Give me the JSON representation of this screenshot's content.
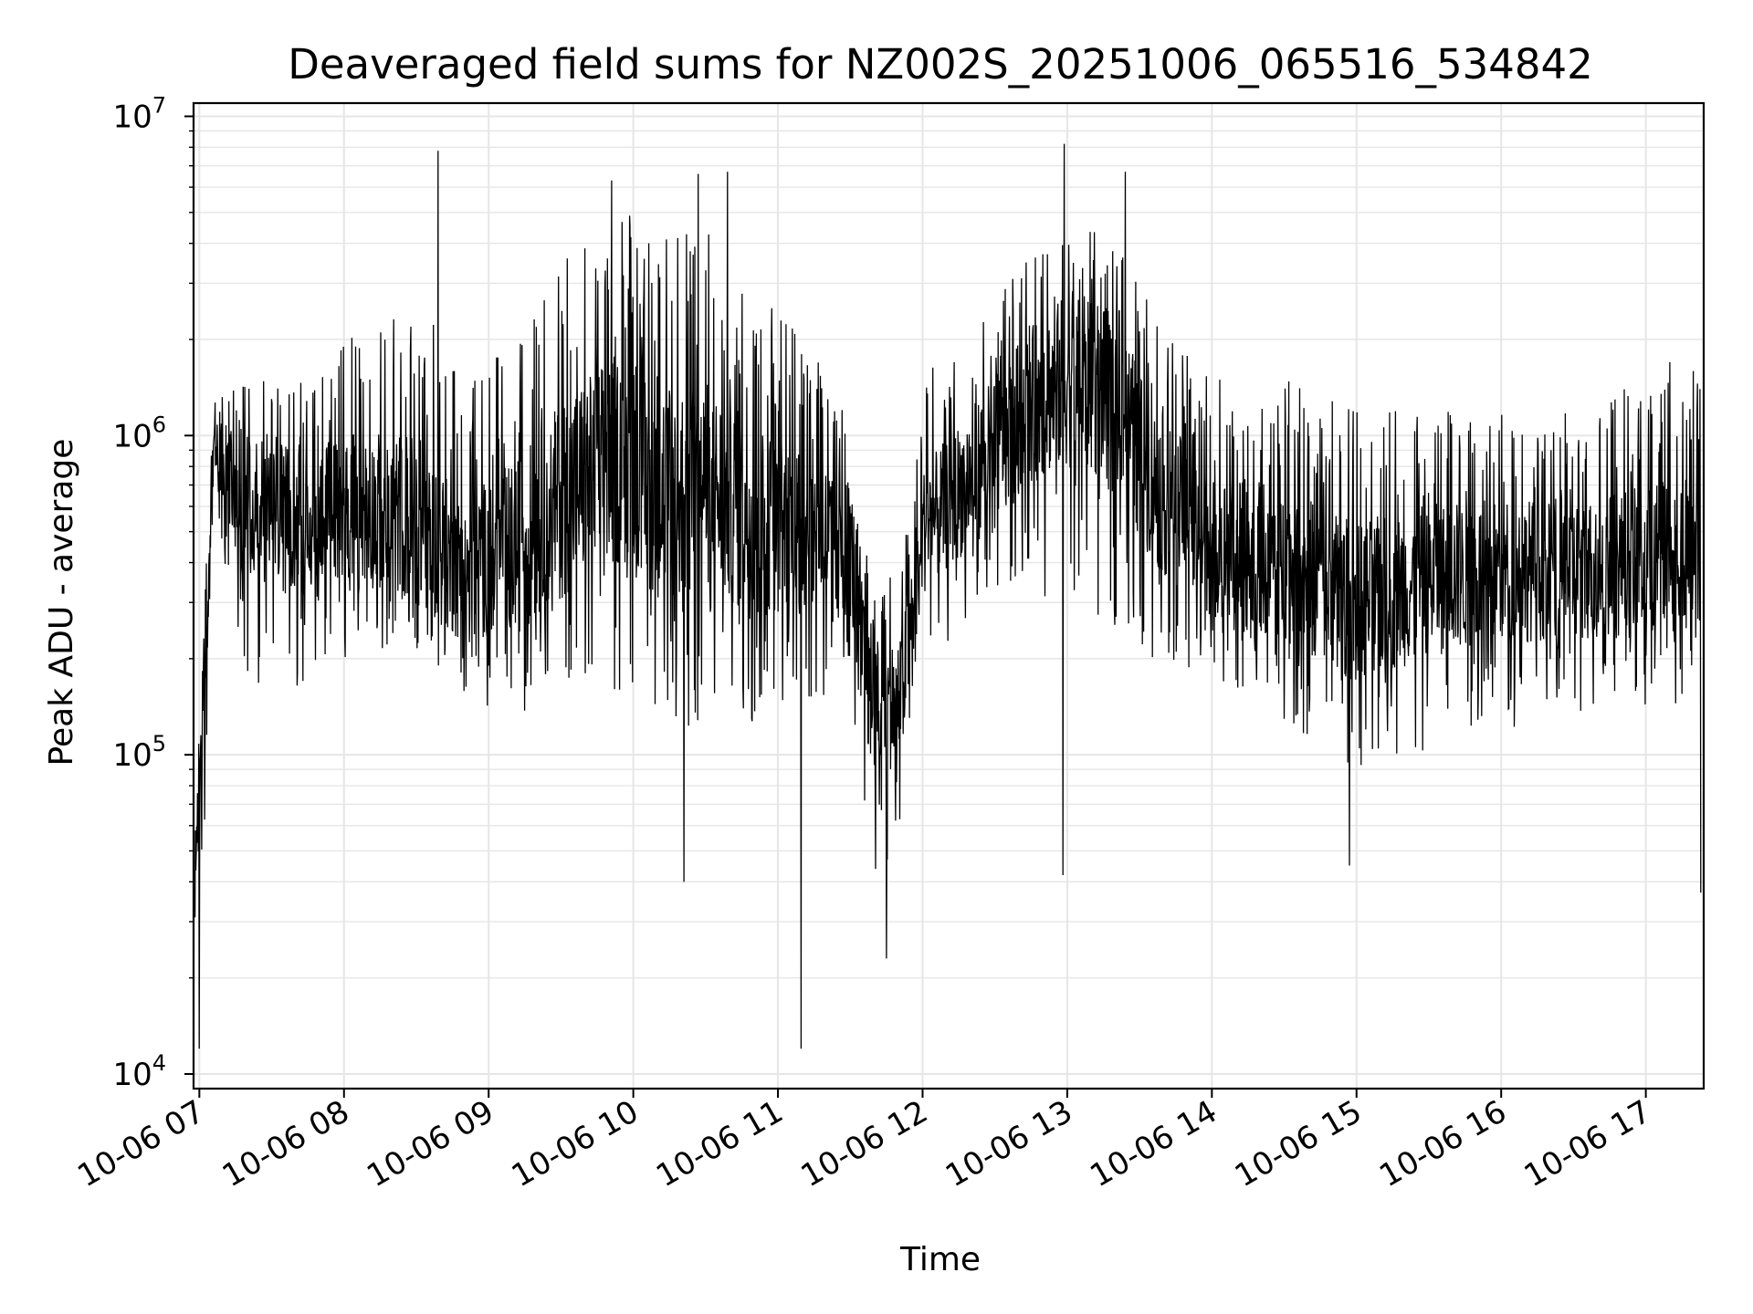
{
  "chart_data": {
    "type": "line",
    "title": "Deaveraged field sums for NZ002S_20251006_065516_534842",
    "xlabel": "Time",
    "ylabel": "Peak ADU - average",
    "yscale": "log",
    "ylim": [
      9000,
      11000000
    ],
    "xlim_hours": [
      6.96,
      17.4
    ],
    "x_ticks": [
      {
        "hour": 7,
        "label": "10-06 07"
      },
      {
        "hour": 8,
        "label": "10-06 08"
      },
      {
        "hour": 9,
        "label": "10-06 09"
      },
      {
        "hour": 10,
        "label": "10-06 10"
      },
      {
        "hour": 11,
        "label": "10-06 11"
      },
      {
        "hour": 12,
        "label": "10-06 12"
      },
      {
        "hour": 13,
        "label": "10-06 13"
      },
      {
        "hour": 14,
        "label": "10-06 14"
      },
      {
        "hour": 15,
        "label": "10-06 15"
      },
      {
        "hour": 16,
        "label": "10-06 16"
      },
      {
        "hour": 17,
        "label": "10-06 17"
      }
    ],
    "y_ticks": [
      {
        "value": 10000,
        "base": "10",
        "exp": "4"
      },
      {
        "value": 100000,
        "base": "10",
        "exp": "5"
      },
      {
        "value": 1000000,
        "base": "10",
        "exp": "6"
      },
      {
        "value": 10000000,
        "base": "10",
        "exp": "7"
      }
    ],
    "grid": true,
    "line_color": "#000000",
    "grid_color": "#e6e6e6",
    "series": [
      {
        "name": "field sums",
        "envelope": [
          {
            "hour": 6.97,
            "low": 25000,
            "high": 60000,
            "base": 45000
          },
          {
            "hour": 7.03,
            "low": 40000,
            "high": 300000,
            "base": 120000
          },
          {
            "hour": 7.1,
            "low": 600000,
            "high": 1300000,
            "base": 950000
          },
          {
            "hour": 7.3,
            "low": 150000,
            "high": 1500000,
            "base": 600000
          },
          {
            "hour": 7.6,
            "low": 150000,
            "high": 1500000,
            "base": 550000
          },
          {
            "hour": 8.0,
            "low": 200000,
            "high": 2000000,
            "base": 600000
          },
          {
            "hour": 8.5,
            "low": 180000,
            "high": 3000000,
            "base": 550000
          },
          {
            "hour": 8.8,
            "low": 150000,
            "high": 1500000,
            "base": 380000
          },
          {
            "hour": 9.2,
            "low": 120000,
            "high": 2000000,
            "base": 450000
          },
          {
            "hour": 9.6,
            "low": 150000,
            "high": 4000000,
            "base": 700000
          },
          {
            "hour": 10.0,
            "low": 150000,
            "high": 5000000,
            "base": 900000
          },
          {
            "hour": 10.3,
            "low": 80000,
            "high": 4500000,
            "base": 600000
          },
          {
            "hour": 10.5,
            "low": 150000,
            "high": 4500000,
            "base": 700000
          },
          {
            "hour": 10.8,
            "low": 120000,
            "high": 3000000,
            "base": 550000
          },
          {
            "hour": 11.2,
            "low": 150000,
            "high": 2000000,
            "base": 500000
          },
          {
            "hour": 11.5,
            "low": 150000,
            "high": 1500000,
            "base": 450000
          },
          {
            "hour": 11.65,
            "low": 40000,
            "high": 300000,
            "base": 130000
          },
          {
            "hour": 11.85,
            "low": 50000,
            "high": 400000,
            "base": 150000
          },
          {
            "hour": 12.0,
            "low": 200000,
            "high": 1500000,
            "base": 500000
          },
          {
            "hour": 12.4,
            "low": 250000,
            "high": 2500000,
            "base": 800000
          },
          {
            "hour": 12.7,
            "low": 300000,
            "high": 3500000,
            "base": 1200000
          },
          {
            "hour": 13.0,
            "low": 300000,
            "high": 5000000,
            "base": 1500000
          },
          {
            "hour": 13.35,
            "low": 250000,
            "high": 4000000,
            "base": 1300000
          },
          {
            "hour": 13.6,
            "low": 180000,
            "high": 2500000,
            "base": 700000
          },
          {
            "hour": 14.0,
            "low": 150000,
            "high": 1500000,
            "base": 450000
          },
          {
            "hour": 14.5,
            "low": 120000,
            "high": 1500000,
            "base": 400000
          },
          {
            "hour": 15.0,
            "low": 90000,
            "high": 1200000,
            "base": 300000
          },
          {
            "hour": 15.5,
            "low": 100000,
            "high": 1200000,
            "base": 350000
          },
          {
            "hour": 16.0,
            "low": 120000,
            "high": 1200000,
            "base": 380000
          },
          {
            "hour": 16.5,
            "low": 120000,
            "high": 1200000,
            "base": 380000
          },
          {
            "hour": 17.0,
            "low": 130000,
            "high": 1500000,
            "base": 400000
          },
          {
            "hour": 17.38,
            "low": 150000,
            "high": 2000000,
            "base": 450000
          }
        ],
        "spikes": [
          {
            "hour": 8.65,
            "value": 7800000
          },
          {
            "hour": 9.85,
            "value": 6300000
          },
          {
            "hour": 10.45,
            "value": 6600000
          },
          {
            "hour": 10.65,
            "value": 6700000
          },
          {
            "hour": 12.98,
            "value": 8200000
          },
          {
            "hour": 13.4,
            "value": 6700000
          },
          {
            "hour": 7.0,
            "value": 12000
          },
          {
            "hour": 11.16,
            "value": 12000
          },
          {
            "hour": 11.75,
            "value": 23000
          },
          {
            "hour": 10.35,
            "value": 40000
          },
          {
            "hour": 12.97,
            "value": 42000
          },
          {
            "hour": 14.95,
            "value": 45000
          },
          {
            "hour": 17.38,
            "value": 37000
          }
        ]
      }
    ]
  }
}
